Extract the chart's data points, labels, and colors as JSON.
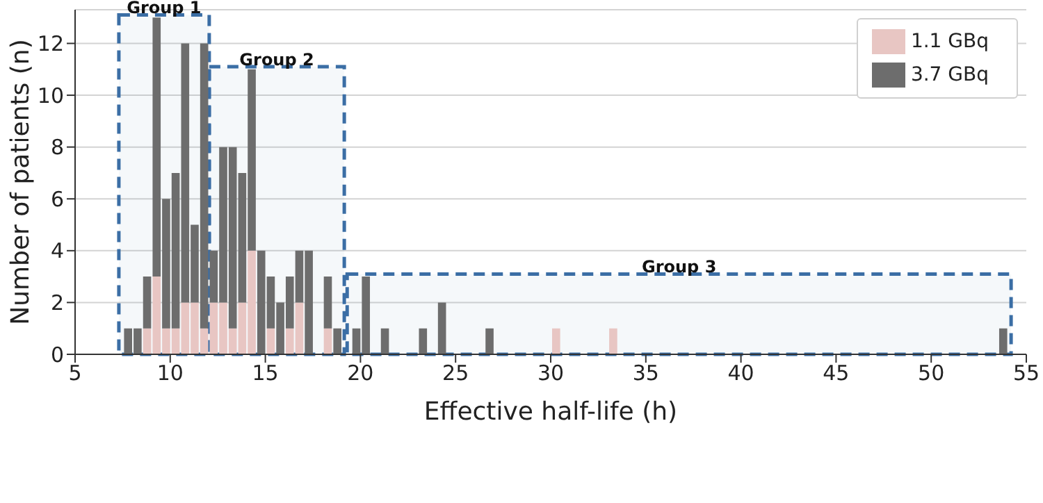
{
  "chart_data": {
    "type": "bar",
    "xlabel": "Effective half-life (h)",
    "ylabel": "Number of patients (n)",
    "x": [
      7.75,
      8.25,
      8.75,
      9.25,
      9.75,
      10.25,
      10.75,
      11.25,
      11.75,
      12.25,
      12.75,
      13.25,
      13.75,
      14.25,
      14.75,
      15.25,
      15.75,
      16.25,
      16.75,
      17.25,
      18.25,
      18.75,
      19.75,
      20.25,
      21.25,
      23.25,
      24.25,
      26.75,
      30.25,
      33.25,
      53.75
    ],
    "stacked": true,
    "series": [
      {
        "name": "1.1 GBq",
        "color": "#e8c6c3",
        "values": [
          0,
          0,
          1,
          3,
          1,
          1,
          2,
          2,
          1,
          2,
          2,
          1,
          2,
          4,
          0,
          1,
          0,
          1,
          2,
          0,
          1,
          0,
          0,
          0,
          0,
          0,
          0,
          0,
          1,
          1,
          0
        ]
      },
      {
        "name": "3.7 GBq",
        "color": "#6d6d6d",
        "values": [
          1,
          1,
          2,
          10,
          5,
          6,
          10,
          3,
          11,
          2,
          6,
          7,
          5,
          7,
          4,
          2,
          2,
          2,
          2,
          4,
          2,
          1,
          1,
          3,
          1,
          1,
          2,
          1,
          0,
          0,
          1
        ]
      }
    ],
    "xlim": [
      5,
      55
    ],
    "xticks": [
      5,
      10,
      15,
      20,
      25,
      30,
      35,
      40,
      45,
      50,
      55
    ],
    "ylim": [
      0,
      13.3
    ],
    "yticks": [
      0,
      2,
      4,
      6,
      8,
      10,
      12
    ],
    "grid": "y",
    "legend": "top right",
    "bands": [
      {
        "axis": "x",
        "from": 7.3,
        "to": 12.05,
        "label": "Group 1",
        "color": "#3b6ea5"
      },
      {
        "axis": "x",
        "from": 12.05,
        "to": 19.15,
        "label": "Group 2",
        "color": "#3b6ea5"
      },
      {
        "axis": "x",
        "from": 19.3,
        "to": 54.2,
        "label": "Group 3",
        "color": "#3b6ea5"
      }
    ]
  }
}
